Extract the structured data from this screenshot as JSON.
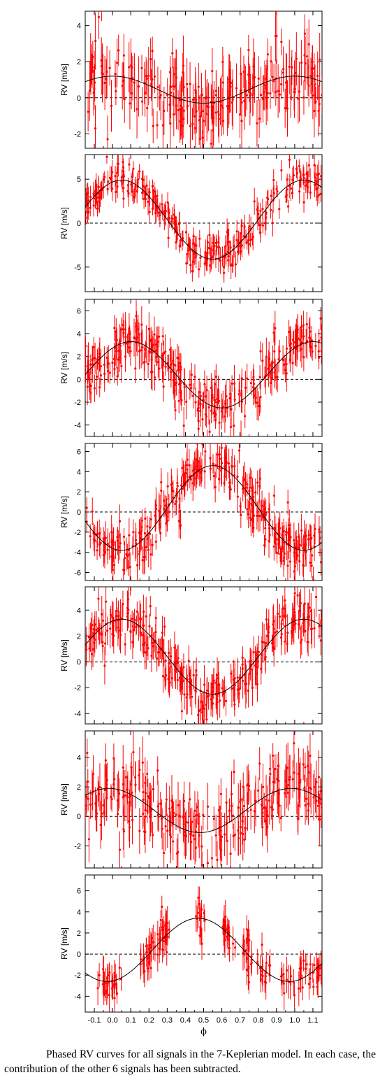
{
  "caption": "Phased RV curves for all signals in the 7-Keplerian model. In each case, the contribution of the other 6 signals has been subtracted.",
  "chart_data": {
    "type": "scatter",
    "xlabel": "ϕ",
    "xlim": [
      -0.15,
      1.15
    ],
    "xticks": [
      -0.1,
      0.0,
      0.1,
      0.2,
      0.3,
      0.4,
      0.5,
      0.6,
      0.7,
      0.8,
      0.9,
      1.0,
      1.1
    ],
    "xtick_labels": [
      "-0.1",
      "0.0",
      "0.1",
      "0.2",
      "0.3",
      "0.4",
      "0.5",
      "0.6",
      "0.7",
      "0.8",
      "0.9",
      "1.0",
      "1.1"
    ],
    "point_color": "#ff0000",
    "model_color": "#000000",
    "zero_line": "dashed",
    "panels": [
      {
        "ylabel": "RV [m/s]",
        "ylim": [
          -2.8,
          4.8
        ],
        "yticks": [
          -2,
          0,
          2,
          4
        ],
        "model": {
          "offset": 0.45,
          "amplitude": 0.75,
          "peak_phase": 1.0
        },
        "scatter": {
          "std": 1.1,
          "err": 1.2,
          "n": 240,
          "seed": 11
        }
      },
      {
        "ylabel": "RV [m/s]",
        "ylim": [
          -7.8,
          7.8
        ],
        "yticks": [
          -5,
          0,
          5
        ],
        "model": {
          "offset": 0.4,
          "amplitude": 4.5,
          "peak_phase": 1.05
        },
        "scatter": {
          "std": 1.0,
          "err": 1.1,
          "n": 300,
          "seed": 22
        }
      },
      {
        "ylabel": "RV [m/s]",
        "ylim": [
          -5.0,
          7.0
        ],
        "yticks": [
          -4,
          -2,
          0,
          2,
          4,
          6
        ],
        "model": {
          "offset": 0.4,
          "amplitude": 2.9,
          "peak_phase": 1.1
        },
        "scatter": {
          "std": 1.1,
          "err": 1.2,
          "n": 300,
          "seed": 33
        }
      },
      {
        "ylabel": "RV [m/s]",
        "ylim": [
          -6.8,
          6.8
        ],
        "yticks": [
          -6,
          -4,
          -2,
          0,
          2,
          4,
          6
        ],
        "model": {
          "offset": 0.4,
          "amplitude": 4.2,
          "peak_phase": 0.55
        },
        "scatter": {
          "std": 1.2,
          "err": 1.3,
          "n": 320,
          "seed": 44
        }
      },
      {
        "ylabel": "RV [m/s]",
        "ylim": [
          -4.8,
          5.8
        ],
        "yticks": [
          -4,
          -2,
          0,
          2,
          4
        ],
        "model": {
          "offset": 0.4,
          "amplitude": 2.9,
          "peak_phase": 1.05
        },
        "scatter": {
          "std": 1.0,
          "err": 1.1,
          "n": 300,
          "seed": 55
        }
      },
      {
        "ylabel": "RV [m/s]",
        "ylim": [
          -3.5,
          5.8
        ],
        "yticks": [
          -2,
          0,
          2,
          4
        ],
        "model": {
          "offset": 0.4,
          "amplitude": 1.5,
          "peak_phase": 0.98
        },
        "scatter": {
          "std": 1.3,
          "err": 1.3,
          "n": 260,
          "seed": 66
        }
      },
      {
        "ylabel": "RV [m/s]",
        "ylim": [
          -5.5,
          7.5
        ],
        "yticks": [
          -4,
          -2,
          0,
          2,
          4,
          6
        ],
        "model": {
          "offset": 0.4,
          "amplitude": 3.0,
          "peak_phase": 0.47
        },
        "scatter": {
          "std": 1.0,
          "err": 1.2,
          "n": 190,
          "seed": 77,
          "clustered": true
        }
      }
    ]
  }
}
